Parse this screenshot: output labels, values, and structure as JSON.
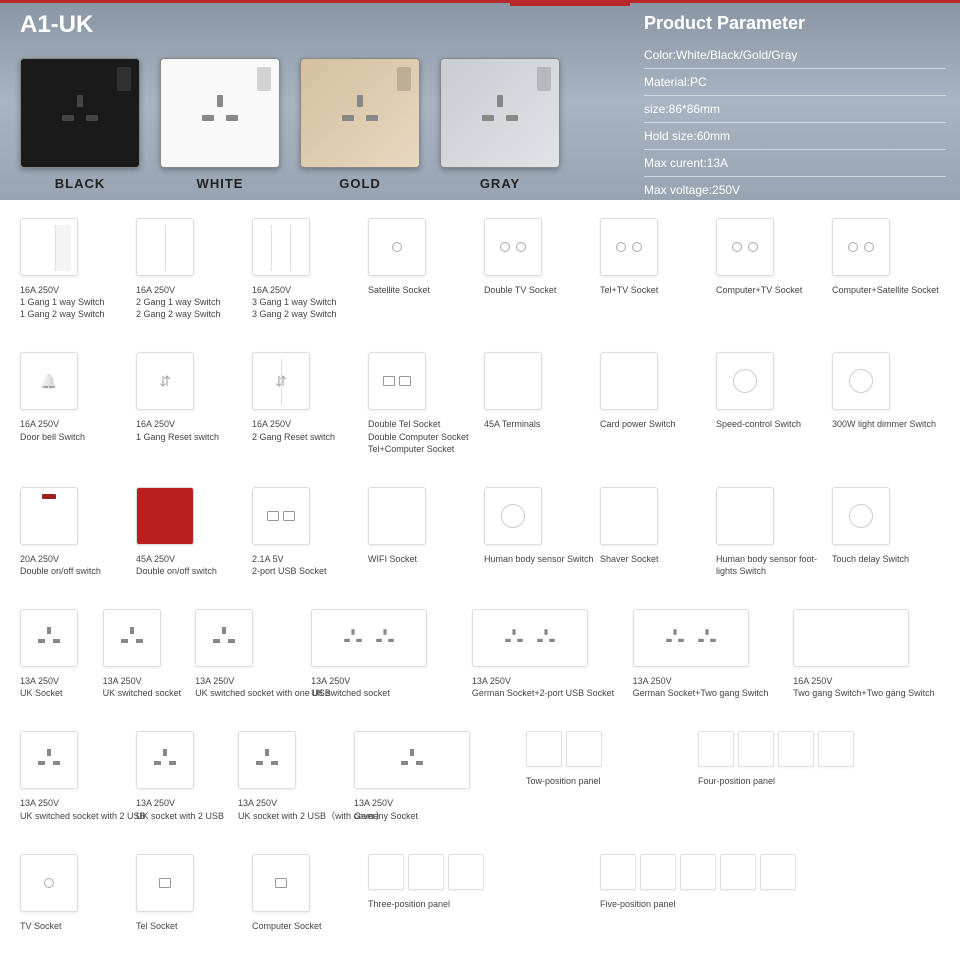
{
  "header": {
    "title": "A1-UK",
    "swatches": [
      {
        "label": "BLACK",
        "cls": "black"
      },
      {
        "label": "WHITE",
        "cls": "white"
      },
      {
        "label": "GOLD",
        "cls": "gold"
      },
      {
        "label": "GRAY",
        "cls": "gray"
      }
    ],
    "param_title": "Product Parameter",
    "params": [
      "Color:White/Black/Gold/Gray",
      "Material:PC",
      "size:86*86mm",
      "Hold size:60mm",
      "Max curent:13A",
      "Max voltage:250V"
    ]
  },
  "rows": [
    [
      {
        "lines": [
          "16A 250V",
          "1 Gang 1 way Switch",
          "1 Gang 2 way Switch"
        ],
        "icon": "sw1"
      },
      {
        "lines": [
          "16A 250V",
          "2 Gang 1 way Switch",
          "2 Gang 2 way Switch"
        ],
        "icon": "sw2"
      },
      {
        "lines": [
          "16A 250V",
          "3 Gang 1 way Switch",
          "3 Gang 2 way Switch"
        ],
        "icon": "sw3"
      },
      {
        "lines": [
          "Satellite Socket"
        ],
        "icon": "dot"
      },
      {
        "lines": [
          "Double TV Socket"
        ],
        "icon": "twodot"
      },
      {
        "lines": [
          "Tel+TV Socket"
        ],
        "icon": "twodot"
      },
      {
        "lines": [
          "Computer+TV Socket"
        ],
        "icon": "twodot"
      },
      {
        "lines": [
          "Computer+Satellite Socket"
        ],
        "icon": "twodot"
      }
    ],
    [
      {
        "lines": [
          "16A 250V",
          "Door bell Switch"
        ],
        "icon": "bell"
      },
      {
        "lines": [
          "16A 250V",
          "1 Gang Reset switch"
        ],
        "icon": "updown"
      },
      {
        "lines": [
          "16A 250V",
          "2 Gang Reset switch"
        ],
        "icon": "updown2"
      },
      {
        "lines": [
          "Double Tel Socket",
          "Double Computer Socket",
          "Tel+Computer Socket"
        ],
        "icon": "tworj"
      },
      {
        "lines": [
          "45A Terminals"
        ],
        "icon": "blank"
      },
      {
        "lines": [
          "Card power Switch"
        ],
        "icon": "blank"
      },
      {
        "lines": [
          "Speed-control Switch"
        ],
        "icon": "ring"
      },
      {
        "lines": [
          "300W light dimmer Switch"
        ],
        "icon": "ring"
      }
    ],
    [
      {
        "lines": [
          "20A 250V",
          "Double on/off switch"
        ],
        "icon": "ind"
      },
      {
        "lines": [
          "45A 250V",
          "Double on/off switch"
        ],
        "icon": "red"
      },
      {
        "lines": [
          "2.1A 5V",
          "2-port USB Socket"
        ],
        "icon": "tworj"
      },
      {
        "lines": [
          "WIFI Socket"
        ],
        "icon": "blank"
      },
      {
        "lines": [
          "Human body sensor Switch"
        ],
        "icon": "ring"
      },
      {
        "lines": [
          "Shaver Socket"
        ],
        "icon": "blank"
      },
      {
        "lines": [
          "Human body sensor foot-",
          "lights Switch"
        ],
        "icon": "blank"
      },
      {
        "lines": [
          "Touch delay Switch"
        ],
        "icon": "ring"
      }
    ],
    [
      {
        "lines": [
          "13A 250V",
          "UK Socket"
        ],
        "icon": "uk"
      },
      {
        "lines": [
          "13A 250V",
          "UK switched socket"
        ],
        "icon": "uk"
      },
      {
        "lines": [
          "13A 250V",
          "UK switched socket with one USB"
        ],
        "icon": "uk"
      },
      {
        "lines": [
          "13A 250V",
          "UK switched socket"
        ],
        "icon": "twouk",
        "w": 2
      },
      {
        "lines": [
          "13A 250V",
          "German Socket+2-port USB Socket"
        ],
        "icon": "twouk",
        "w": 2
      },
      {
        "lines": [
          "13A 250V",
          "German Socket+Two gang Switch"
        ],
        "icon": "twouk",
        "w": 2
      },
      {
        "lines": [
          "16A 250V",
          "Two gang Switch+Two gang Switch"
        ],
        "icon": "blank",
        "w": 2
      }
    ],
    [
      {
        "lines": [
          "13A 250V",
          "UK switched socket with 2 USB"
        ],
        "icon": "uk"
      },
      {
        "lines": [
          "13A 250V",
          "UK socket with 2 USB"
        ],
        "icon": "uk"
      },
      {
        "lines": [
          "13A 250V",
          "UK socket with 2 USB（with cover）"
        ],
        "icon": "uk"
      },
      {
        "lines": [
          "13A 250V",
          "Gemany Socket"
        ],
        "icon": "uk",
        "w": 2
      },
      {
        "lines": [
          "Tow-position panel"
        ],
        "icon": "frames2",
        "w": 2
      },
      {
        "lines": [
          "Four-position panel"
        ],
        "icon": "frames4",
        "w": 3
      }
    ],
    [
      {
        "lines": [
          "TV Socket"
        ],
        "icon": "dot"
      },
      {
        "lines": [
          "Tel Socket"
        ],
        "icon": "rj"
      },
      {
        "lines": [
          "Computer Socket"
        ],
        "icon": "rj"
      },
      {
        "lines": [
          "Three-position panel"
        ],
        "icon": "frames3",
        "w": 2
      },
      {
        "lines": [
          "Five-position panel"
        ],
        "icon": "frames5",
        "w": 3
      }
    ]
  ]
}
